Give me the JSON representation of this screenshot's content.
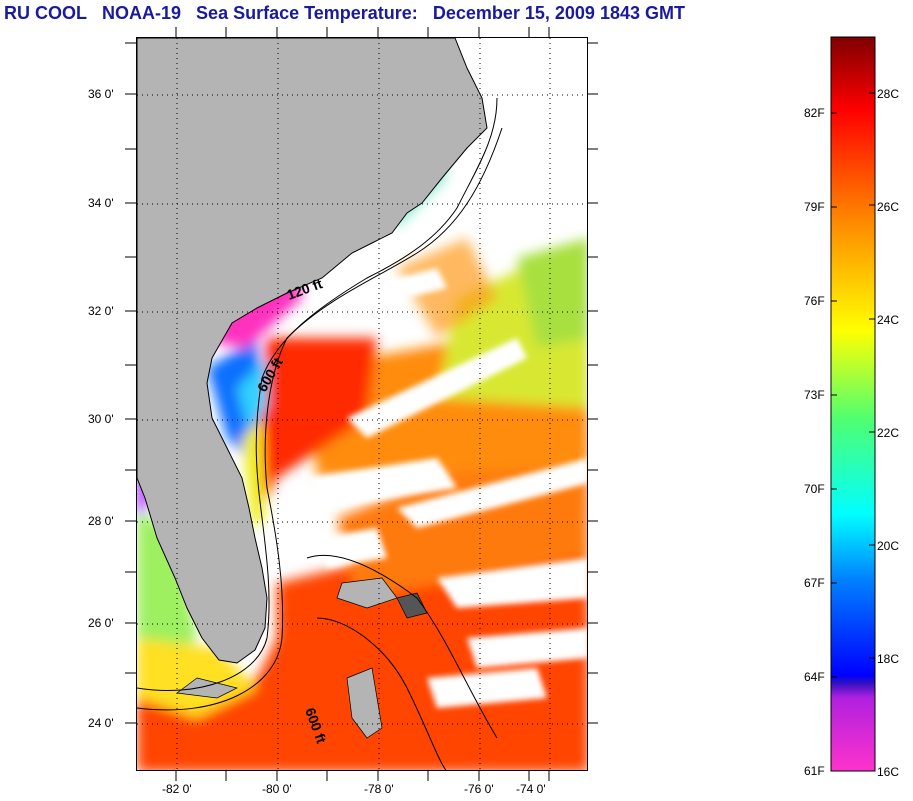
{
  "title": {
    "org": "RU COOL",
    "satellite": "NOAA-19",
    "product": "Sea Surface Temperature:",
    "datetime": "December 15, 2009 1843 GMT"
  },
  "latitude_labels": [
    "36 0'",
    "34 0'",
    "32 0'",
    "30 0'",
    "28 0'",
    "26 0'",
    "24 0'"
  ],
  "longitude_labels": [
    "-82 0'",
    "-80 0'",
    "-78 0'",
    "-76 0'",
    "-74 0'"
  ],
  "isobath_labels": [
    "120 ft",
    "600 ft",
    "600 ft"
  ],
  "colorbar": {
    "fahrenheit_labels": [
      "82F",
      "79F",
      "76F",
      "73F",
      "70F",
      "67F",
      "64F",
      "61F"
    ],
    "celsius_labels": [
      "28C",
      "26C",
      "24C",
      "22C",
      "20C",
      "18C",
      "16C"
    ],
    "colors": [
      "#ff33cc",
      "#7a1fc8",
      "#0000ff",
      "#00a0ff",
      "#00ffff",
      "#55ff66",
      "#ffff00",
      "#ff8800",
      "#ff0000",
      "#800000"
    ]
  },
  "colors": {
    "land": "#b4b4b4",
    "cloud_no_data": "#ffffff",
    "title_text": "#1a1aa0"
  }
}
